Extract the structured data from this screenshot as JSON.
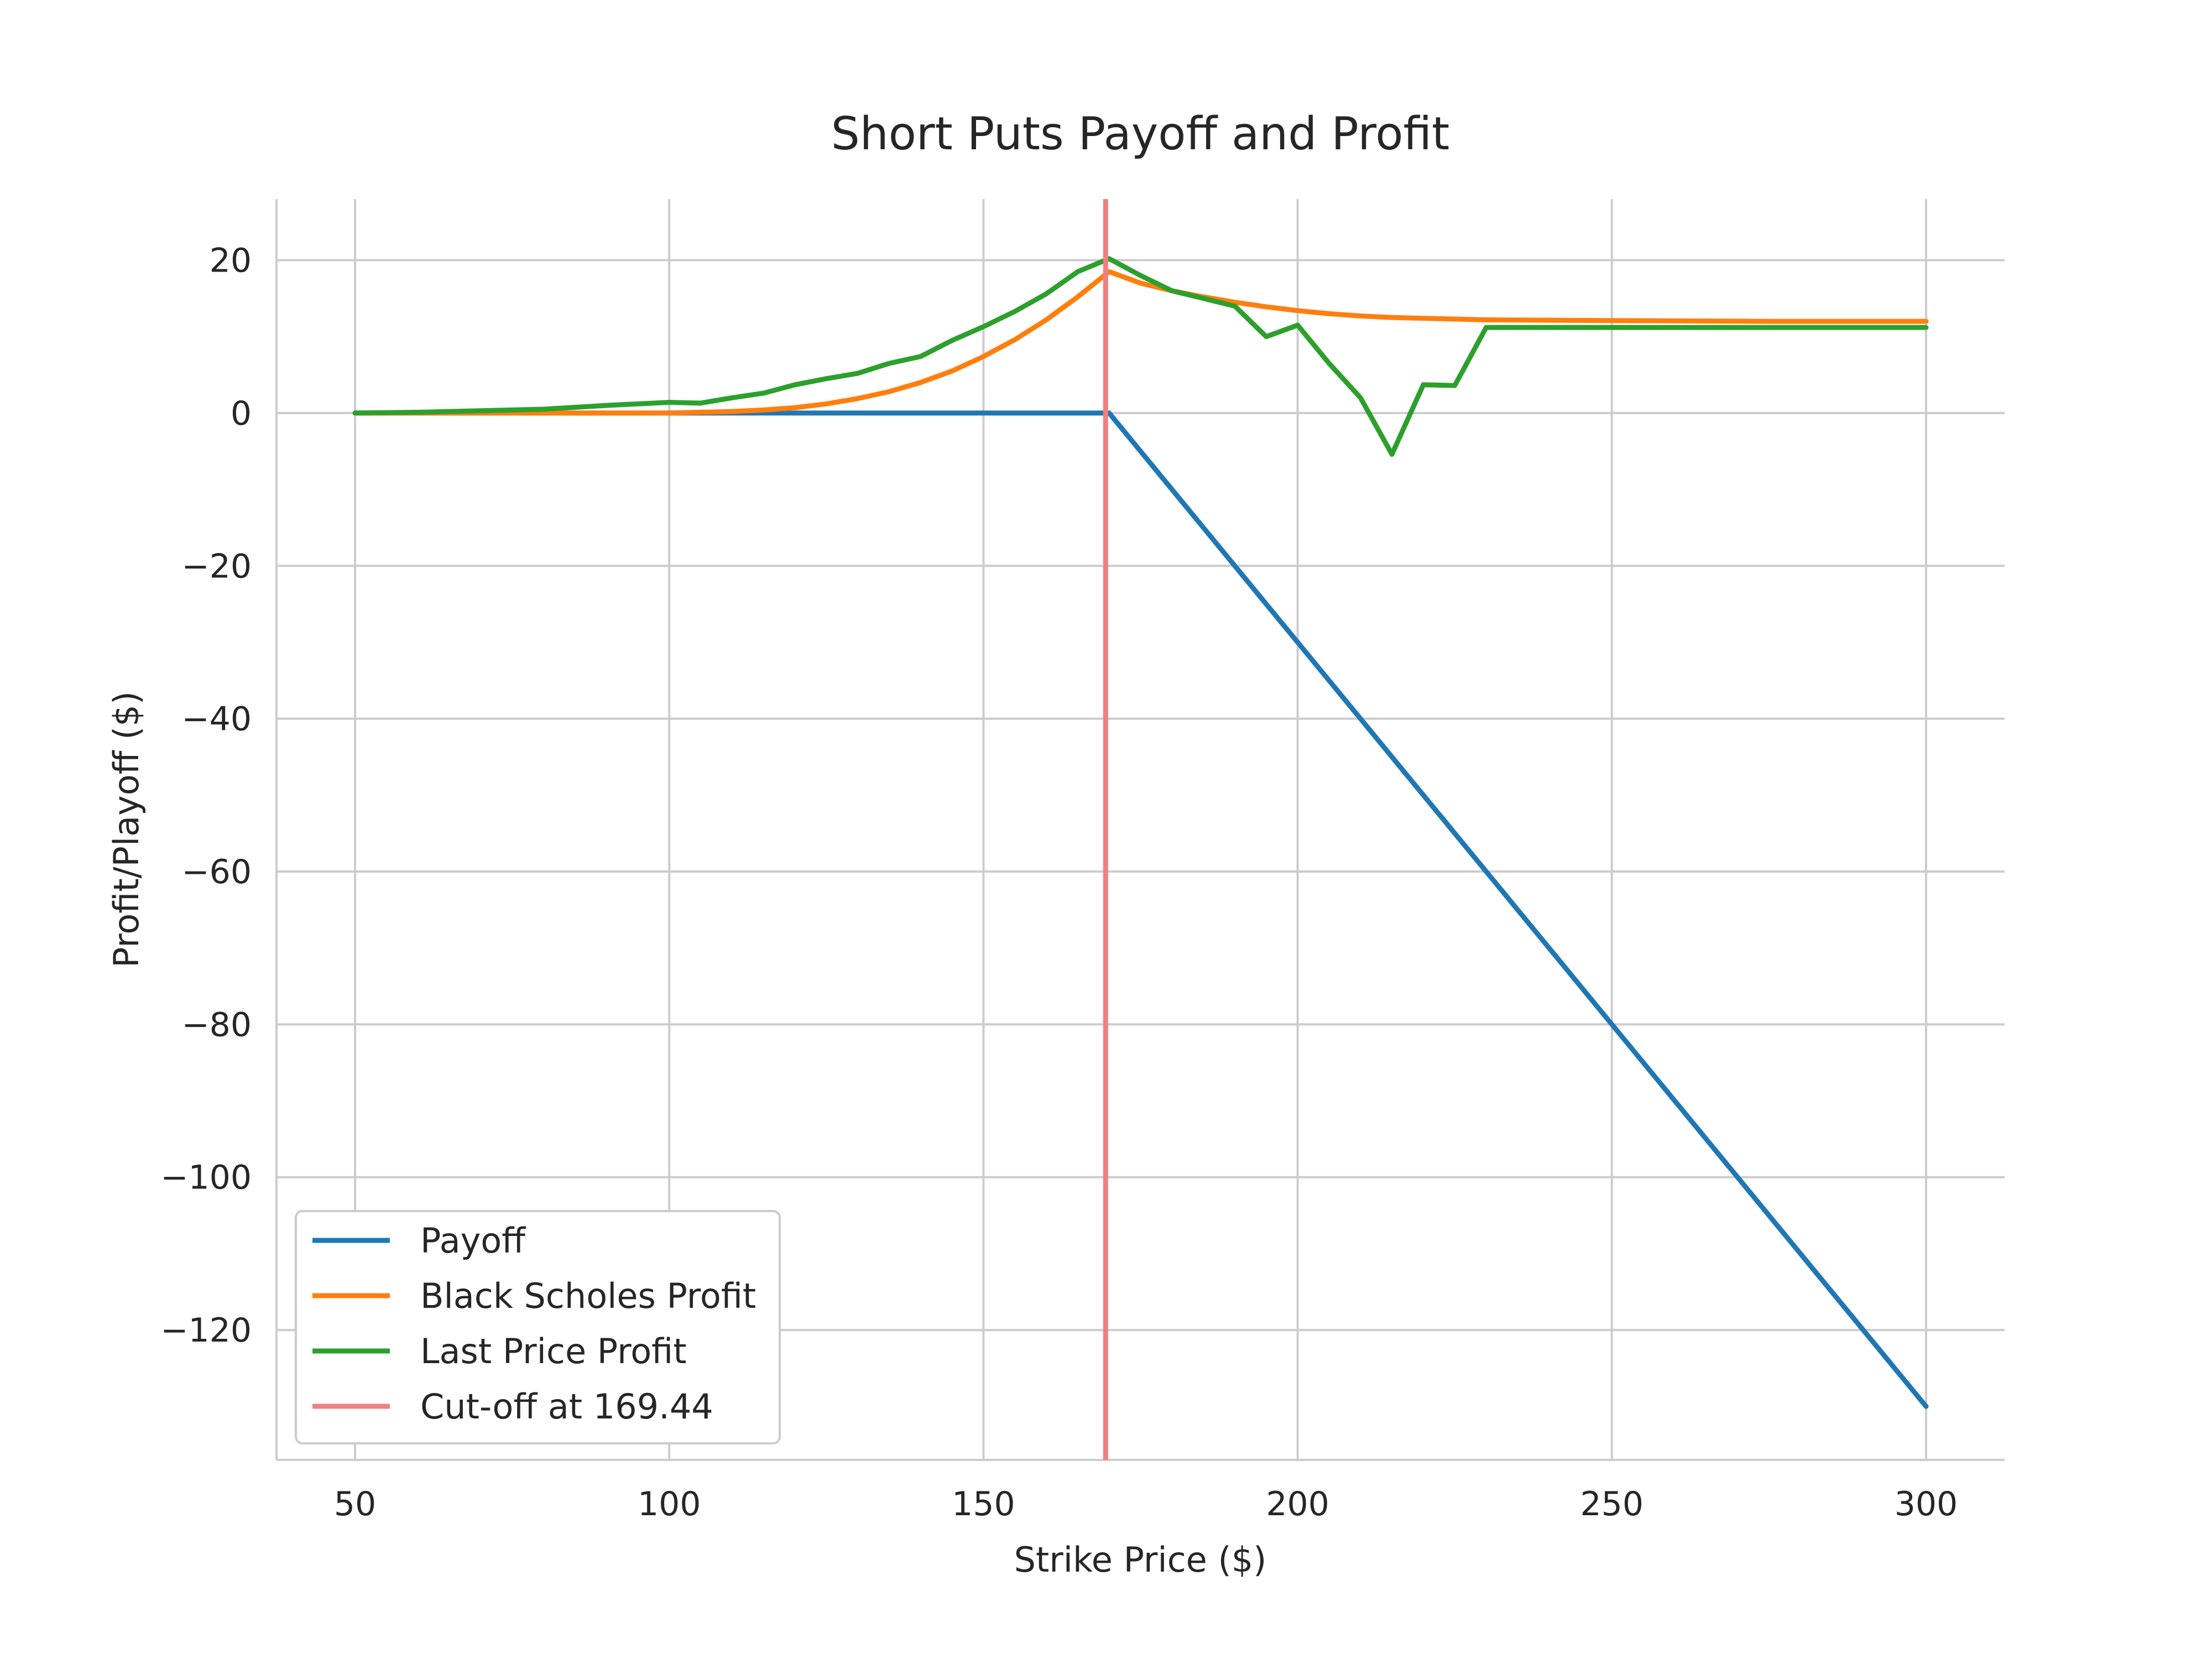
{
  "chart_data": {
    "type": "line",
    "title": "Short Puts Payoff and Profit",
    "xlabel": "Strike Price ($)",
    "ylabel": "Profit/Playoff ($)",
    "xlim": [
      37.5,
      312.5
    ],
    "ylim": [
      -137,
      28
    ],
    "xticks": [
      50,
      100,
      150,
      200,
      250,
      300
    ],
    "yticks": [
      20,
      0,
      -20,
      -40,
      -60,
      -80,
      -100,
      -120
    ],
    "xtick_labels": [
      "50",
      "100",
      "150",
      "200",
      "250",
      "300"
    ],
    "ytick_labels": [
      "20",
      "0",
      "−20",
      "−40",
      "−60",
      "−80",
      "−100",
      "−120"
    ],
    "grid": true,
    "legend_position": "lower-left",
    "cutoff": {
      "x": 169.44,
      "label": "Cut-off at 169.44",
      "color": "#f08080"
    },
    "series": [
      {
        "name": "Payoff",
        "color": "#1f77b4",
        "points": [
          [
            50,
            0
          ],
          [
            170,
            0
          ],
          [
            300,
            -130
          ]
        ]
      },
      {
        "name": "Black Scholes Profit",
        "color": "#ff7f0e",
        "points": [
          [
            50,
            0
          ],
          [
            60,
            0
          ],
          [
            70,
            0
          ],
          [
            80,
            0
          ],
          [
            90,
            0
          ],
          [
            100,
            0
          ],
          [
            105,
            0.1
          ],
          [
            110,
            0.2
          ],
          [
            115,
            0.4
          ],
          [
            120,
            0.7
          ],
          [
            125,
            1.2
          ],
          [
            130,
            1.9
          ],
          [
            135,
            2.8
          ],
          [
            140,
            4.0
          ],
          [
            145,
            5.5
          ],
          [
            150,
            7.4
          ],
          [
            155,
            9.6
          ],
          [
            160,
            12.2
          ],
          [
            165,
            15.2
          ],
          [
            170,
            18.5
          ],
          [
            175,
            17.0
          ],
          [
            180,
            16.0
          ],
          [
            185,
            15.2
          ],
          [
            190,
            14.5
          ],
          [
            195,
            13.9
          ],
          [
            200,
            13.4
          ],
          [
            205,
            13.0
          ],
          [
            210,
            12.7
          ],
          [
            215,
            12.5
          ],
          [
            220,
            12.4
          ],
          [
            230,
            12.2
          ],
          [
            250,
            12.1
          ],
          [
            275,
            12.0
          ],
          [
            300,
            12.0
          ]
        ]
      },
      {
        "name": "Last Price Profit",
        "color": "#2ca02c",
        "points": [
          [
            50,
            0
          ],
          [
            60,
            0.1
          ],
          [
            70,
            0.3
          ],
          [
            80,
            0.5
          ],
          [
            90,
            1.0
          ],
          [
            100,
            1.4
          ],
          [
            105,
            1.3
          ],
          [
            110,
            2.0
          ],
          [
            115,
            2.6
          ],
          [
            120,
            3.7
          ],
          [
            125,
            4.5
          ],
          [
            130,
            5.2
          ],
          [
            135,
            6.5
          ],
          [
            140,
            7.4
          ],
          [
            145,
            9.5
          ],
          [
            150,
            11.3
          ],
          [
            155,
            13.3
          ],
          [
            160,
            15.6
          ],
          [
            165,
            18.5
          ],
          [
            170,
            20.2
          ],
          [
            175,
            18.0
          ],
          [
            180,
            16.0
          ],
          [
            185,
            15.0
          ],
          [
            190,
            14.0
          ],
          [
            195,
            10.0
          ],
          [
            200,
            11.5
          ],
          [
            205,
            6.5
          ],
          [
            210,
            2.0
          ],
          [
            215,
            -5.4
          ],
          [
            220,
            3.7
          ],
          [
            225,
            3.6
          ],
          [
            230,
            11.2
          ],
          [
            250,
            11.2
          ],
          [
            275,
            11.2
          ],
          [
            300,
            11.2
          ]
        ]
      }
    ]
  }
}
